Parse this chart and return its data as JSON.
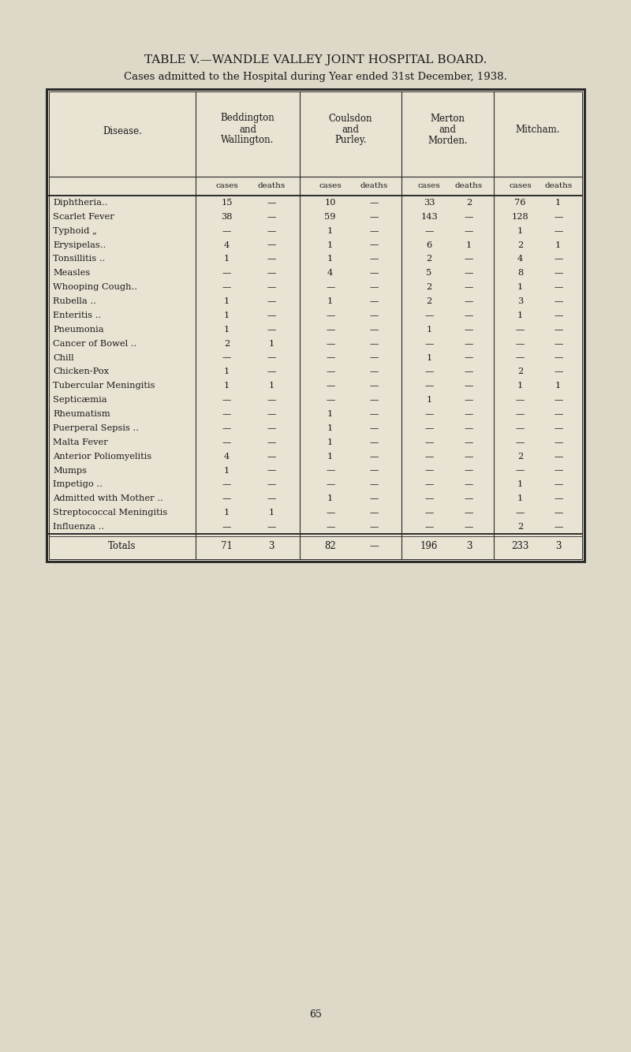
{
  "title": "TABLE V.—WANDLE VALLEY JOINT HOSPITAL BOARD.",
  "subtitle": "Cases admitted to the Hospital during Year ended 31st December, 1938.",
  "bg_color": "#ddd8c8",
  "table_bg": "#e8e3d3",
  "diseases": [
    "Diphtheria..    ..    ..",
    "Scarlet Fever   ..    ..",
    "Typhoid „    ..    ..",
    "Erysipelas ..    ..    ..",
    "Tonsillitis ..    ..    ..",
    "Measles    ..    ..",
    "Whooping Cough ..    ..",
    "Rubella ..    ..    ..",
    "Enteritis ..    ..    ..",
    "Pneumonia    ..    ..",
    "Cancer of Bowel ..    ..",
    "Chill    ..    ..",
    "Chicken-Pox    ..    ..",
    "Tubercular Meningitis ..",
    "Septicæmia    ..    ..",
    "Rheumatism    ..    ..",
    "Puerperal Sepsis ..    ..",
    "Malta Fever    ..    ..",
    "Anterior Poliomyelitis ..",
    "Mumps    ..    ..    ..",
    "Impetigo ..    ..    ..",
    "Admitted with Mother ..",
    "Streptococcal Meningitis",
    "Influenza ..    ..    .."
  ],
  "disease_display": [
    "Diphtheria..",
    "Scarlet Fever",
    "Typhoid „",
    "Erysipelas..",
    "Tonsillitis ..",
    "Measles",
    "Whooping Cough..",
    "Rubella ..",
    "Enteritis ..",
    "Pneumonia",
    "Cancer of Bowel ..",
    "Chill",
    "Chicken-Pox",
    "Tubercular Meningitis",
    "Septicæmia",
    "Rheumatism",
    "Puerperal Sepsis ..",
    "Malta Fever",
    "Anterior Poliomyelitis",
    "Mumps",
    "Impetigo ..",
    "Admitted with Mother ..",
    "Streptococcal Meningitis",
    "Influenza .."
  ],
  "data": [
    [
      "15",
      "—",
      "10",
      "—",
      "33",
      "2",
      "76",
      "1"
    ],
    [
      "38",
      "—",
      "59",
      "—",
      "143",
      "—",
      "128",
      "—"
    ],
    [
      "—",
      "—",
      "1",
      "—",
      "—",
      "—",
      "1",
      "—"
    ],
    [
      "4",
      "—",
      "1",
      "—",
      "6",
      "1",
      "2",
      "1"
    ],
    [
      "1",
      "—",
      "1",
      "—",
      "2",
      "—",
      "4",
      "—"
    ],
    [
      "—",
      "—",
      "4",
      "—",
      "5",
      "—",
      "8",
      "—"
    ],
    [
      "—",
      "—",
      "—",
      "—",
      "2",
      "—",
      "1",
      "—"
    ],
    [
      "1",
      "—",
      "1",
      "—",
      "2",
      "—",
      "3",
      "—"
    ],
    [
      "1",
      "—",
      "—",
      "—",
      "—",
      "—",
      "1",
      "—"
    ],
    [
      "1",
      "—",
      "—",
      "—",
      "1",
      "—",
      "—",
      "—"
    ],
    [
      "2",
      "1",
      "—",
      "—",
      "—",
      "—",
      "—",
      "—"
    ],
    [
      "—",
      "—",
      "—",
      "—",
      "1",
      "—",
      "—",
      "—"
    ],
    [
      "1",
      "—",
      "—",
      "—",
      "—",
      "—",
      "2",
      "—"
    ],
    [
      "1",
      "1",
      "—",
      "—",
      "—",
      "—",
      "1",
      "1"
    ],
    [
      "—",
      "—",
      "—",
      "—",
      "1",
      "—",
      "—",
      "—"
    ],
    [
      "—",
      "—",
      "1",
      "—",
      "—",
      "—",
      "—",
      "—"
    ],
    [
      "—",
      "—",
      "1",
      "—",
      "—",
      "—",
      "—",
      "—"
    ],
    [
      "—",
      "—",
      "1",
      "—",
      "—",
      "—",
      "—",
      "—"
    ],
    [
      "4",
      "—",
      "1",
      "—",
      "—",
      "—",
      "2",
      "—"
    ],
    [
      "1",
      "—",
      "—",
      "—",
      "—",
      "—",
      "—",
      "—"
    ],
    [
      "—",
      "—",
      "—",
      "—",
      "—",
      "—",
      "1",
      "—"
    ],
    [
      "—",
      "—",
      "1",
      "—",
      "—",
      "—",
      "1",
      "—"
    ],
    [
      "1",
      "1",
      "—",
      "—",
      "—",
      "—",
      "—",
      "—"
    ],
    [
      "—",
      "—",
      "—",
      "—",
      "—",
      "—",
      "2",
      "—"
    ]
  ],
  "totals": [
    "71",
    "3",
    "82",
    "—",
    "196",
    "3",
    "233",
    "3"
  ],
  "page_number": "65",
  "region_headers": [
    [
      "Beddington",
      "and",
      "Wallington."
    ],
    [
      "Coulsdon",
      "and",
      "Purley."
    ],
    [
      "Merton",
      "and",
      "Morden."
    ],
    [
      "Mitcham."
    ]
  ]
}
